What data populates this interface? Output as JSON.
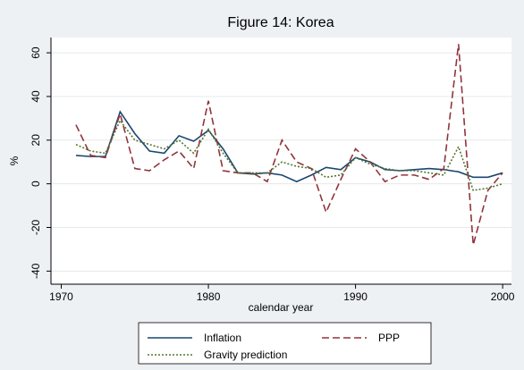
{
  "chart_data": {
    "type": "line",
    "title": "Figure 14: Korea",
    "x_label": "calendar year",
    "y_label": "%",
    "x": [
      1971,
      1972,
      1973,
      1974,
      1975,
      1976,
      1977,
      1978,
      1979,
      1980,
      1981,
      1982,
      1983,
      1984,
      1985,
      1986,
      1987,
      1988,
      1989,
      1990,
      1991,
      1992,
      1993,
      1994,
      1995,
      1996,
      1997,
      1998,
      1999,
      2000
    ],
    "series": [
      {
        "name": "Inflation",
        "color": "#1a476f",
        "dash": "none",
        "values": [
          13,
          12.5,
          12.5,
          33,
          23,
          15,
          14,
          22,
          19.5,
          24.5,
          16,
          5,
          4.5,
          5,
          4,
          1,
          4,
          7.5,
          6.5,
          12,
          10,
          6.5,
          6,
          6.5,
          7,
          6.5,
          5.5,
          3,
          3,
          5
        ]
      },
      {
        "name": "PPP",
        "color": "#90353b",
        "dash": "8 4",
        "values": [
          27,
          13,
          12,
          32,
          7,
          6,
          11,
          15,
          7,
          38,
          6,
          5,
          5,
          1,
          20,
          10,
          7,
          -13,
          2,
          16,
          10,
          1,
          4,
          4,
          2,
          7,
          64,
          -28,
          -3,
          5
        ]
      },
      {
        "name": "Gravity prediction",
        "color": "#55752f",
        "dash": "2 2",
        "values": [
          18,
          15,
          14,
          29,
          20,
          18,
          16,
          20,
          14,
          25,
          14,
          5,
          5,
          5,
          10,
          8,
          7,
          3,
          4,
          12,
          9,
          7,
          6,
          6,
          5,
          4,
          17,
          -3,
          -2,
          0
        ]
      }
    ],
    "xlim": [
      1969.3,
      2000.6
    ],
    "xticks": [
      1970,
      1980,
      1990,
      2000
    ],
    "ylim": [
      -46,
      67
    ],
    "yticks": [
      -40,
      -20,
      0,
      20,
      40,
      60
    ],
    "grid": true
  }
}
